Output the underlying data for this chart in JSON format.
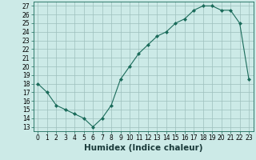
{
  "x": [
    0,
    1,
    2,
    3,
    4,
    5,
    6,
    7,
    8,
    9,
    10,
    11,
    12,
    13,
    14,
    15,
    16,
    17,
    18,
    19,
    20,
    21,
    22,
    23
  ],
  "y": [
    18,
    17,
    15.5,
    15,
    14.5,
    14,
    13,
    14,
    15.5,
    18.5,
    20,
    21.5,
    22.5,
    23.5,
    24,
    25,
    25.5,
    26.5,
    27,
    27,
    26.5,
    26.5,
    25,
    18.5
  ],
  "line_color": "#1a6b5a",
  "marker": "D",
  "marker_size": 2.0,
  "bg_color": "#cceae7",
  "grid_color": "#9dbfbd",
  "xlabel": "Humidex (Indice chaleur)",
  "xlim": [
    -0.5,
    23.5
  ],
  "ylim": [
    12.5,
    27.5
  ],
  "yticks": [
    13,
    14,
    15,
    16,
    17,
    18,
    19,
    20,
    21,
    22,
    23,
    24,
    25,
    26,
    27
  ],
  "xticks": [
    0,
    1,
    2,
    3,
    4,
    5,
    6,
    7,
    8,
    9,
    10,
    11,
    12,
    13,
    14,
    15,
    16,
    17,
    18,
    19,
    20,
    21,
    22,
    23
  ],
  "tick_fontsize": 5.5,
  "xlabel_fontsize": 7.5
}
